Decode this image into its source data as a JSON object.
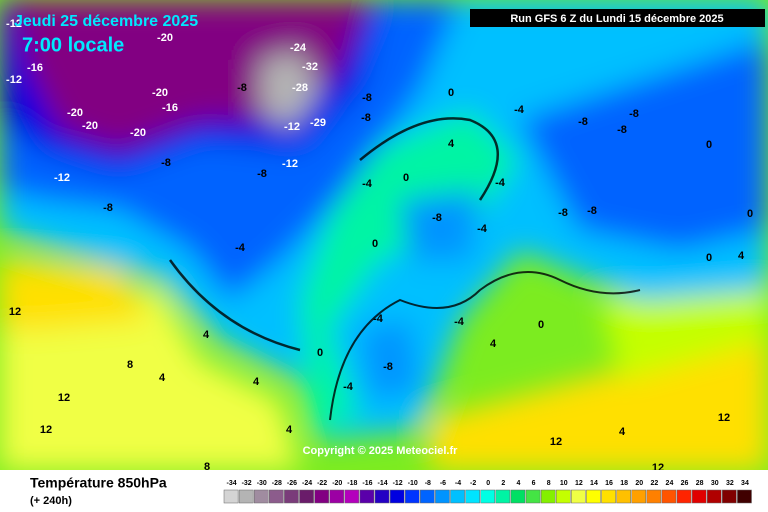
{
  "header": {
    "date": "Jeudi 25 décembre 2025",
    "time": "7:00 locale",
    "run": "Run GFS 6 Z du Lundi 15 décembre 2025"
  },
  "copyright": "Copyright © 2025 Meteociel.fr",
  "footer": {
    "title": "Température 850hPa",
    "lead": "(+ 240h)"
  },
  "scale": {
    "values": [
      -34,
      -32,
      -30,
      -28,
      -26,
      -24,
      -22,
      -20,
      -18,
      -16,
      -14,
      -12,
      -10,
      -8,
      -6,
      -4,
      -2,
      0,
      2,
      4,
      6,
      8,
      10,
      12,
      14,
      16,
      18,
      20,
      22,
      24,
      26,
      28,
      30,
      32,
      34
    ],
    "colors": [
      "#d4d4d4",
      "#b4b4b4",
      "#a08ca0",
      "#8c5c8c",
      "#7a3c7a",
      "#6a1c6a",
      "#820082",
      "#9c00a4",
      "#b400bc",
      "#5a00aa",
      "#2400c4",
      "#0000e0",
      "#0034ff",
      "#0064ff",
      "#0094ff",
      "#00c0ff",
      "#00e4ff",
      "#00ffe4",
      "#00f4a4",
      "#00e064",
      "#44e444",
      "#84f000",
      "#c4ff00",
      "#f0ff44",
      "#ffff00",
      "#ffe000",
      "#ffc000",
      "#ffa000",
      "#ff8000",
      "#ff5400",
      "#ff2400",
      "#e00000",
      "#b00000",
      "#800000",
      "#400000"
    ]
  },
  "map_labels": [
    "-12",
    "-16",
    "-20",
    "-20",
    "-20",
    "-16",
    "-20",
    "-8",
    "-24",
    "-32",
    "-28",
    "-12",
    "-29",
    "-8",
    "-8",
    "-12",
    "-8",
    "-8",
    "-12",
    "-8",
    "0",
    "-4",
    "-8",
    "-8",
    "-8",
    "4",
    "-4",
    "0",
    "-4",
    "-8",
    "-4",
    "-8",
    "-8",
    "-4",
    "0",
    "-4",
    "0",
    "-8",
    "-4",
    "4",
    "4",
    "12",
    "12",
    "12",
    "4",
    "4",
    "8",
    "8",
    "12",
    "12",
    "12",
    "4",
    "4",
    "0",
    "-4",
    "4",
    "0",
    "0",
    "0",
    "-20",
    "-12"
  ]
}
